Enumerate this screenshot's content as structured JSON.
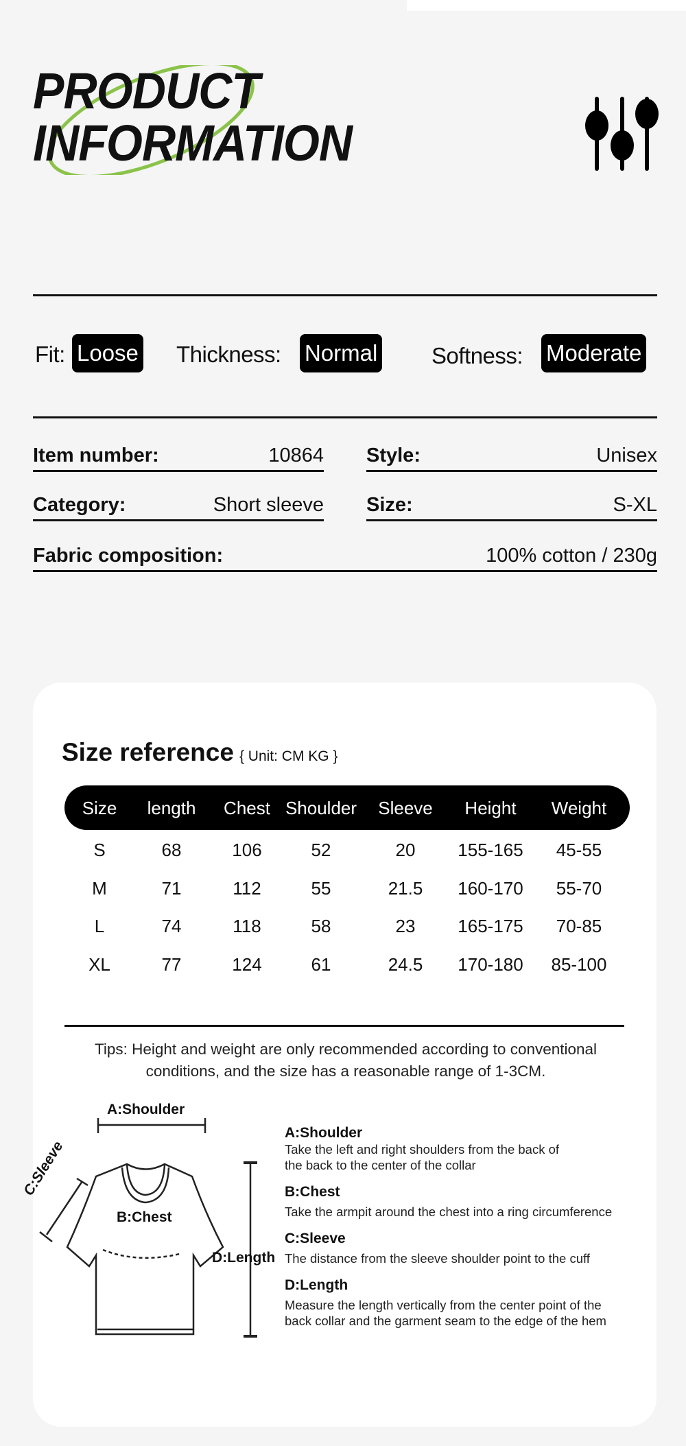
{
  "header": {
    "title_line1": "PRODUCT",
    "title_line2": "INFORMATION",
    "icon": "sliders-icon",
    "accent_color": "#8bc34a"
  },
  "attributes": [
    {
      "label": "Fit:",
      "value": "Loose"
    },
    {
      "label": "Thickness:",
      "value": "Normal"
    },
    {
      "label": "Softness:",
      "value": "Moderate"
    }
  ],
  "details": {
    "item_number": {
      "label": "Item number:",
      "value": "10864"
    },
    "style": {
      "label": "Style:",
      "value": "Unisex"
    },
    "category": {
      "label": "Category:",
      "value": "Short sleeve"
    },
    "size": {
      "label": "Size:",
      "value": "S-XL"
    },
    "fabric": {
      "label": "Fabric composition:",
      "value": "100% cotton / 230g"
    }
  },
  "size_reference": {
    "title": "Size reference",
    "unit": "{ Unit: CM KG }",
    "columns": [
      "Size",
      "length",
      "Chest",
      "Shoulder",
      "Sleeve",
      "Height",
      "Weight"
    ],
    "rows": [
      [
        "S",
        "68",
        "106",
        "52",
        "20",
        "155-165",
        "45-55"
      ],
      [
        "M",
        "71",
        "112",
        "55",
        "21.5",
        "160-170",
        "55-70"
      ],
      [
        "L",
        "74",
        "118",
        "58",
        "23",
        "165-175",
        "70-85"
      ],
      [
        "XL",
        "77",
        "124",
        "61",
        "24.5",
        "170-180",
        "85-100"
      ]
    ],
    "tips_line1": "Tips: Height and weight are only recommended according to conventional",
    "tips_line2": "conditions, and the size has a reasonable range of 1-3CM."
  },
  "diagram": {
    "labels": {
      "shoulder": "A:Shoulder",
      "chest": "B:Chest",
      "sleeve": "C:Sleeve",
      "length": "D:Length"
    },
    "legend": [
      {
        "heading": "A:Shoulder",
        "lines": [
          "Take the left and right shoulders from the back of",
          "the back to the center of the collar"
        ]
      },
      {
        "heading": "B:Chest",
        "lines": [
          "Take the armpit around the chest into a ring circumference"
        ]
      },
      {
        "heading": "C:Sleeve",
        "lines": [
          "The distance from the sleeve shoulder point to the cuff"
        ]
      },
      {
        "heading": "D:Length",
        "lines": [
          "Measure the length vertically from the center point of the",
          "back collar and the garment seam to the edge of the hem"
        ]
      }
    ]
  }
}
